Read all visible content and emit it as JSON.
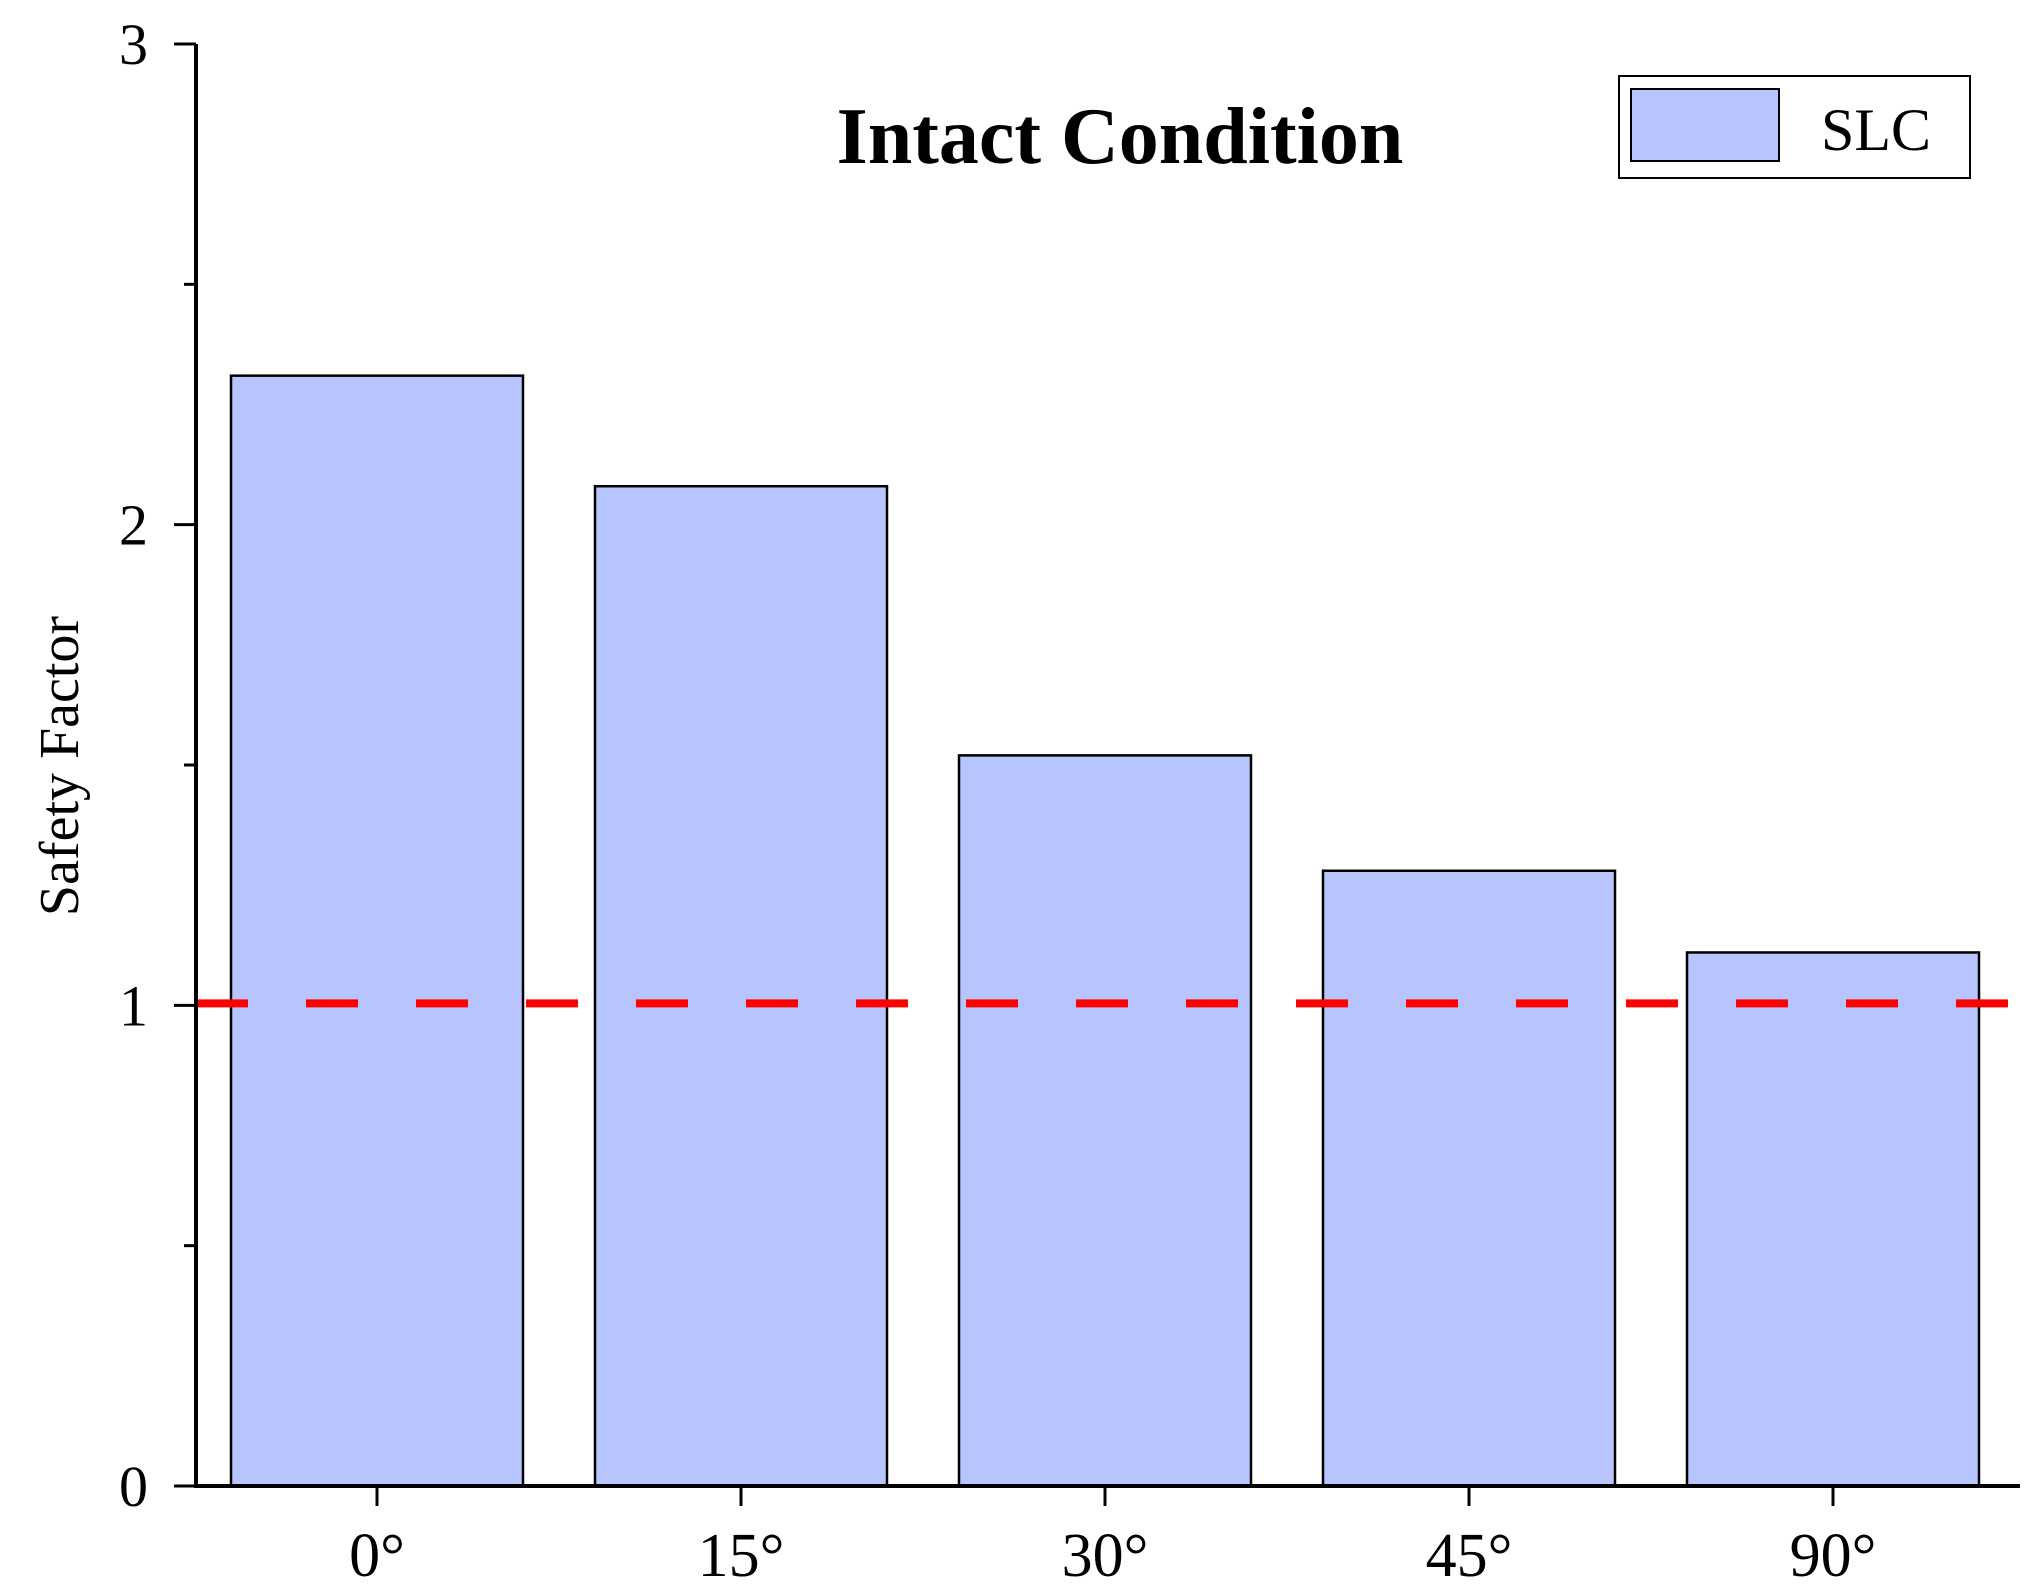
{
  "chart_data": {
    "type": "bar",
    "title": "Intact Condition",
    "xlabel": "",
    "ylabel": "Safety Factor",
    "categories": [
      "0°",
      "15°",
      "30°",
      "45°",
      "90°"
    ],
    "series": [
      {
        "name": "SLC",
        "values": [
          2.31,
          2.08,
          1.52,
          1.28,
          1.11
        ],
        "color": "#b8c4fe"
      }
    ],
    "ylim": [
      0,
      3
    ],
    "yticks": [
      0,
      1,
      2,
      3
    ],
    "reference_line": {
      "y": 1.0,
      "color": "#ff0000",
      "style": "dashed"
    },
    "grid": false,
    "legend_position": "top-right"
  }
}
